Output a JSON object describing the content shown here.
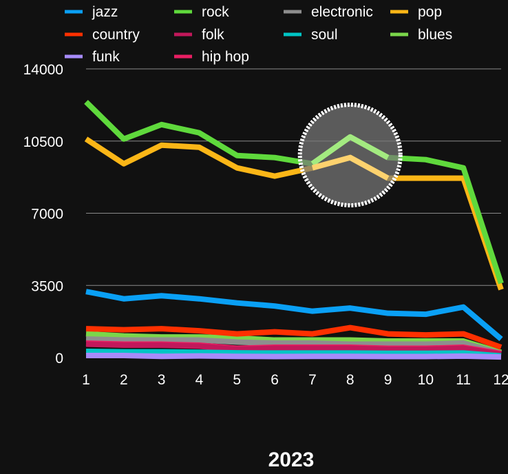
{
  "chart_data": {
    "type": "line",
    "title": "2023",
    "xlabel": "",
    "ylabel": "",
    "x": [
      1,
      2,
      3,
      4,
      5,
      6,
      7,
      8,
      9,
      10,
      11,
      12
    ],
    "x_tick_labels": [
      "1",
      "2",
      "3",
      "4",
      "5",
      "6",
      "7",
      "8",
      "9",
      "10",
      "11",
      "12"
    ],
    "ylim": [
      0,
      14000
    ],
    "y_ticks": [
      0,
      3500,
      7000,
      10500,
      14000
    ],
    "y_tick_labels": [
      "0",
      "3500",
      "7000",
      "10500",
      "14000"
    ],
    "grid": "horizontal",
    "legend_position": "top",
    "highlight": {
      "shape": "circle",
      "x": 8,
      "note": ""
    },
    "series": [
      {
        "name": "jazz",
        "color": "#0aa0f5",
        "values": [
          3200,
          2850,
          3000,
          2850,
          2650,
          2500,
          2250,
          2400,
          2150,
          2100,
          2450,
          900
        ]
      },
      {
        "name": "country",
        "color": "#ff3000",
        "values": [
          1400,
          1350,
          1400,
          1300,
          1150,
          1250,
          1150,
          1450,
          1150,
          1100,
          1150,
          500
        ]
      },
      {
        "name": "funk",
        "color": "#a78bfa",
        "values": [
          100,
          100,
          60,
          80,
          60,
          50,
          60,
          60,
          50,
          50,
          70,
          30
        ]
      },
      {
        "name": "rock",
        "color": "#5fd93c",
        "values": [
          12400,
          10600,
          11300,
          10900,
          9800,
          9700,
          9400,
          10700,
          9700,
          9600,
          9200,
          3600
        ]
      },
      {
        "name": "folk",
        "color": "#c2185b",
        "values": [
          650,
          600,
          600,
          550,
          400,
          450,
          450,
          450,
          400,
          400,
          450,
          150
        ]
      },
      {
        "name": "hip hop",
        "color": "#e91e63",
        "values": [
          700,
          650,
          650,
          600,
          450,
          500,
          500,
          500,
          450,
          450,
          500,
          200
        ]
      },
      {
        "name": "electronic",
        "color": "#8e8e8e",
        "values": [
          900,
          850,
          850,
          850,
          750,
          700,
          700,
          650,
          650,
          650,
          700,
          200
        ]
      },
      {
        "name": "soul",
        "color": "#00c5c5",
        "values": [
          300,
          280,
          280,
          260,
          230,
          220,
          220,
          220,
          210,
          210,
          220,
          80
        ]
      },
      {
        "name": "pop",
        "color": "#fbb617",
        "values": [
          10600,
          9400,
          10300,
          10200,
          9200,
          8800,
          9200,
          9700,
          8700,
          8700,
          8700,
          3300
        ]
      },
      {
        "name": "blues",
        "color": "#7bd64a",
        "values": [
          1150,
          1050,
          1000,
          1000,
          950,
          850,
          850,
          850,
          800,
          800,
          800,
          250
        ]
      }
    ]
  }
}
